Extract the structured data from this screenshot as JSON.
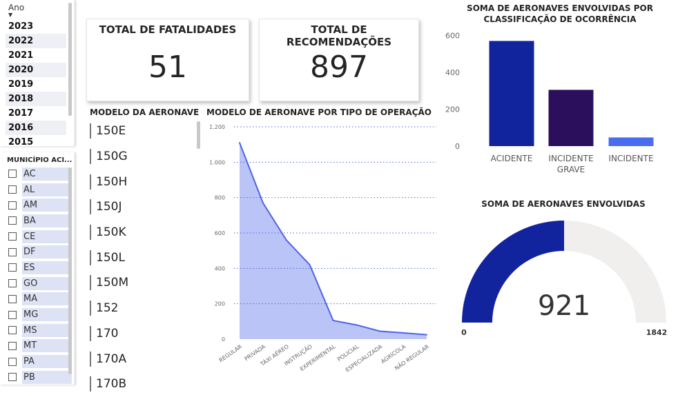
{
  "year_slicer": {
    "header": "Ano",
    "years": [
      "2023",
      "2022",
      "2021",
      "2020",
      "2019",
      "2018",
      "2017",
      "2016",
      "2015"
    ],
    "selected": [
      false,
      true,
      false,
      true,
      false,
      true,
      false,
      true,
      false
    ]
  },
  "municipio_slicer": {
    "header": "MUNICÍPIO ACI...",
    "items": [
      "AC",
      "AL",
      "AM",
      "BA",
      "CE",
      "DF",
      "ES",
      "GO",
      "MA",
      "MG",
      "MS",
      "MT",
      "PA",
      "PB"
    ]
  },
  "kpi": {
    "fatalidades": {
      "title": "TOTAL DE FATALIDADES",
      "value": "51"
    },
    "recomendacoes": {
      "title": "TOTAL DE RECOMENDAÇÕES",
      "value": "897"
    }
  },
  "model_list": {
    "title": "MODELO DA AERONAVE",
    "items": [
      "150E",
      "150G",
      "150H",
      "150J",
      "150K",
      "150L",
      "150M",
      "152",
      "170",
      "170A",
      "170B"
    ]
  },
  "area_chart": {
    "title": "MODELO DE AERONAVE POR TIPO DE OPERAÇÃO"
  },
  "bar_chart": {
    "title_line1": "SOMA DE AERONAVES ENVOLVIDAS POR",
    "title_line2": "CLASSIFICAÇÃO DE OCORRÊNCIA"
  },
  "gauge": {
    "title": "SOMA DE AERONAVES ENVOLVIDAS",
    "value": 921,
    "min": 0,
    "max": 1842,
    "value_label": "921",
    "min_label": "0",
    "max_label": "1842",
    "fill_color": "#12239e",
    "track_color": "#f0efee"
  },
  "chart_data": [
    {
      "type": "area",
      "title": "MODELO DE AERONAVE POR TIPO DE OPERAÇÃO",
      "categories": [
        "REGULAR",
        "PRIVADA",
        "TÁXI AÉREO",
        "INSTRUÇÃO",
        "EXPERIMENTAL",
        "POLICIAL",
        "ESPECIALIZADA",
        "AGRÍCOLA",
        "NÃO REGULAR"
      ],
      "values": [
        1110,
        770,
        560,
        420,
        105,
        80,
        45,
        35,
        25
      ],
      "ylim": [
        0,
        1200
      ],
      "yticks": [
        0,
        200,
        400,
        600,
        800,
        1000,
        1200
      ],
      "ytick_labels": [
        "0",
        "200",
        "400",
        "600",
        "800",
        "1.000",
        "1.200"
      ],
      "grid": true,
      "color": "#4c63e8"
    },
    {
      "type": "bar",
      "title": "SOMA DE AERONAVES ENVOLVIDAS POR CLASSIFICAÇÃO DE OCORRÊNCIA",
      "categories": [
        [
          "ACIDENTE"
        ],
        [
          "INCIDENTE",
          "GRAVE"
        ],
        [
          "INCIDENTE"
        ]
      ],
      "values": [
        570,
        305,
        47
      ],
      "colors": [
        "#12239e",
        "#2b0f5c",
        "#4a6cf0"
      ],
      "ylim": [
        0,
        650
      ],
      "yticks": [
        0,
        200,
        400,
        600
      ],
      "ytick_labels": [
        "0",
        "200",
        "400",
        "600"
      ],
      "grid": false
    }
  ]
}
